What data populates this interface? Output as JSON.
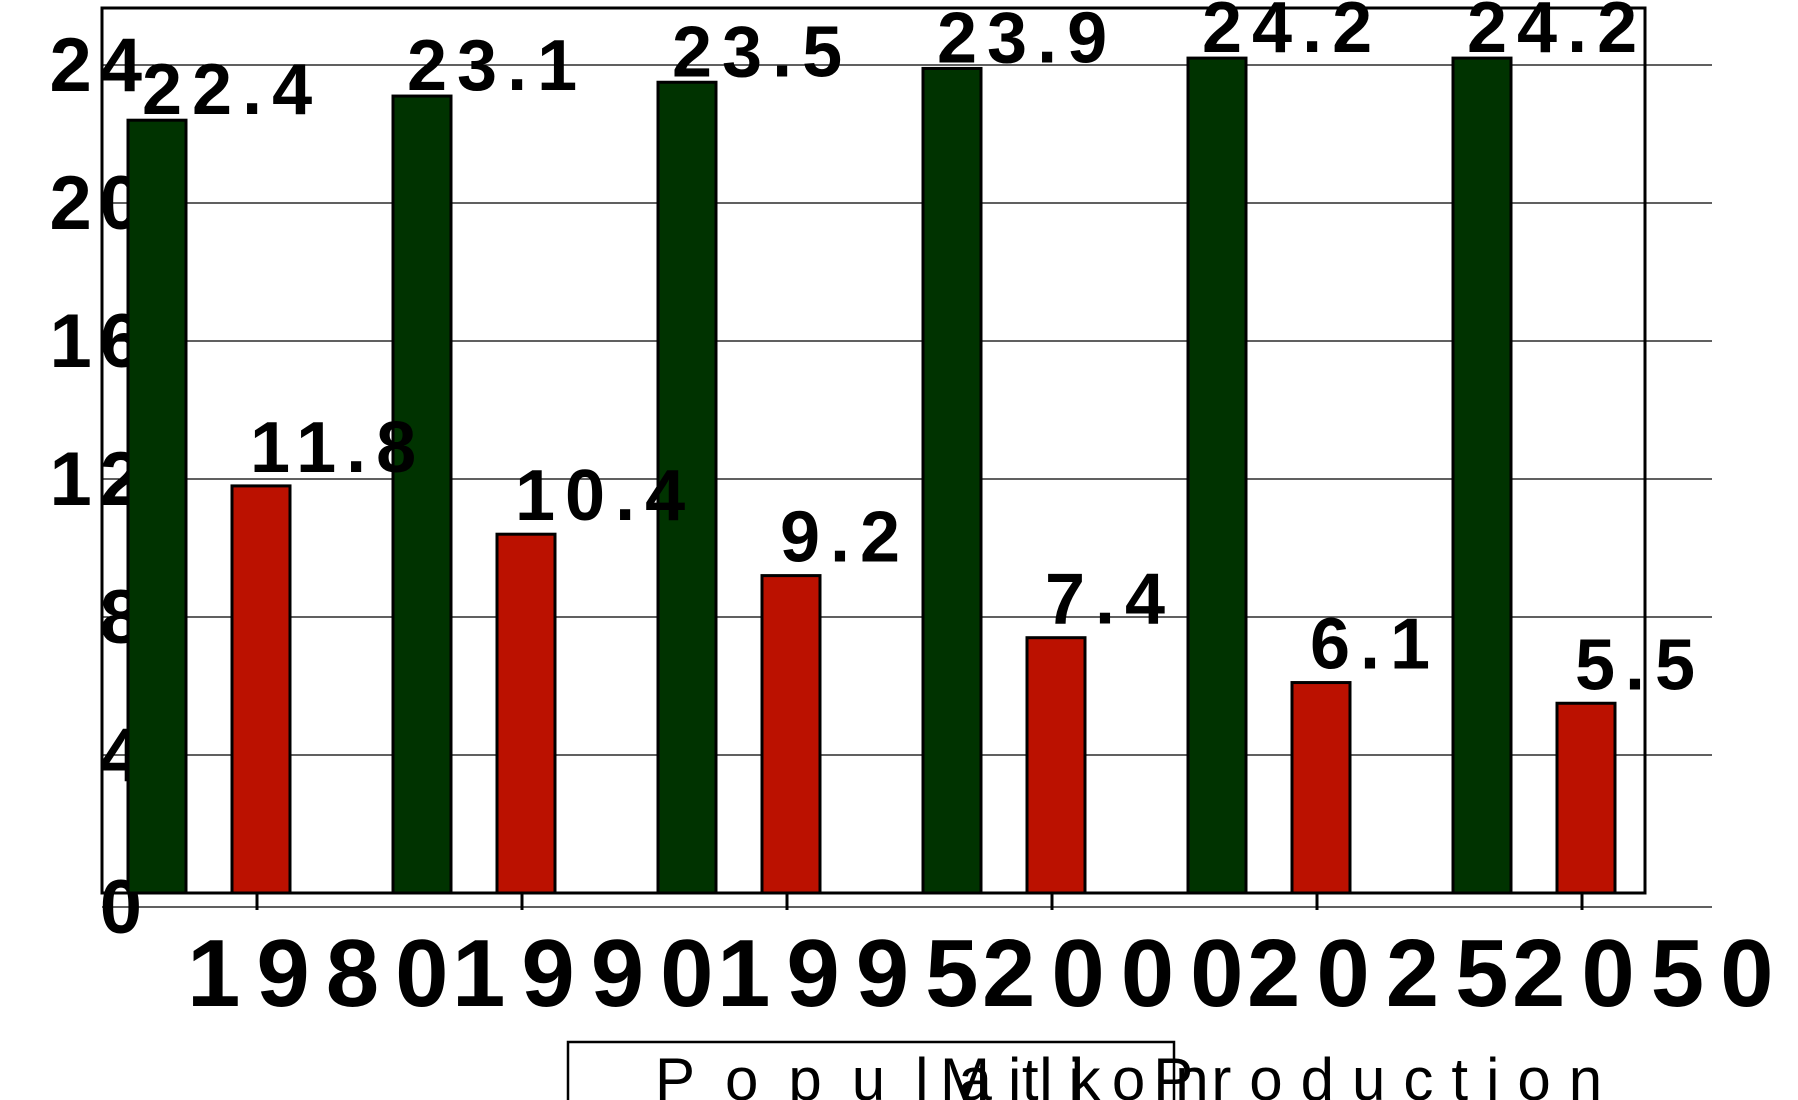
{
  "chart_data": {
    "type": "bar",
    "categories": [
      "1980",
      "1990",
      "1995",
      "2000",
      "2025",
      "2050"
    ],
    "series": [
      {
        "name": "Population",
        "color": "#003300",
        "values": [
          22.4,
          23.1,
          23.5,
          23.9,
          24.2,
          24.2
        ],
        "labels": [
          "22.4",
          "23.1",
          "23.5",
          "23.9",
          "24.2",
          "24.2"
        ]
      },
      {
        "name": "Milk Production",
        "color": "#BB1100",
        "values": [
          11.8,
          10.4,
          9.2,
          7.4,
          6.1,
          5.5
        ],
        "labels": [
          "11.8",
          "10.4",
          "9.2",
          "7.4",
          "6.1",
          "5.5"
        ]
      }
    ],
    "ylim": [
      0,
      24
    ],
    "yticks": [
      "0",
      "4",
      "8",
      "12",
      "16",
      "20",
      "24"
    ],
    "grid": true,
    "legend_position": "bottom",
    "title": "",
    "xlabel": "",
    "ylabel": ""
  }
}
